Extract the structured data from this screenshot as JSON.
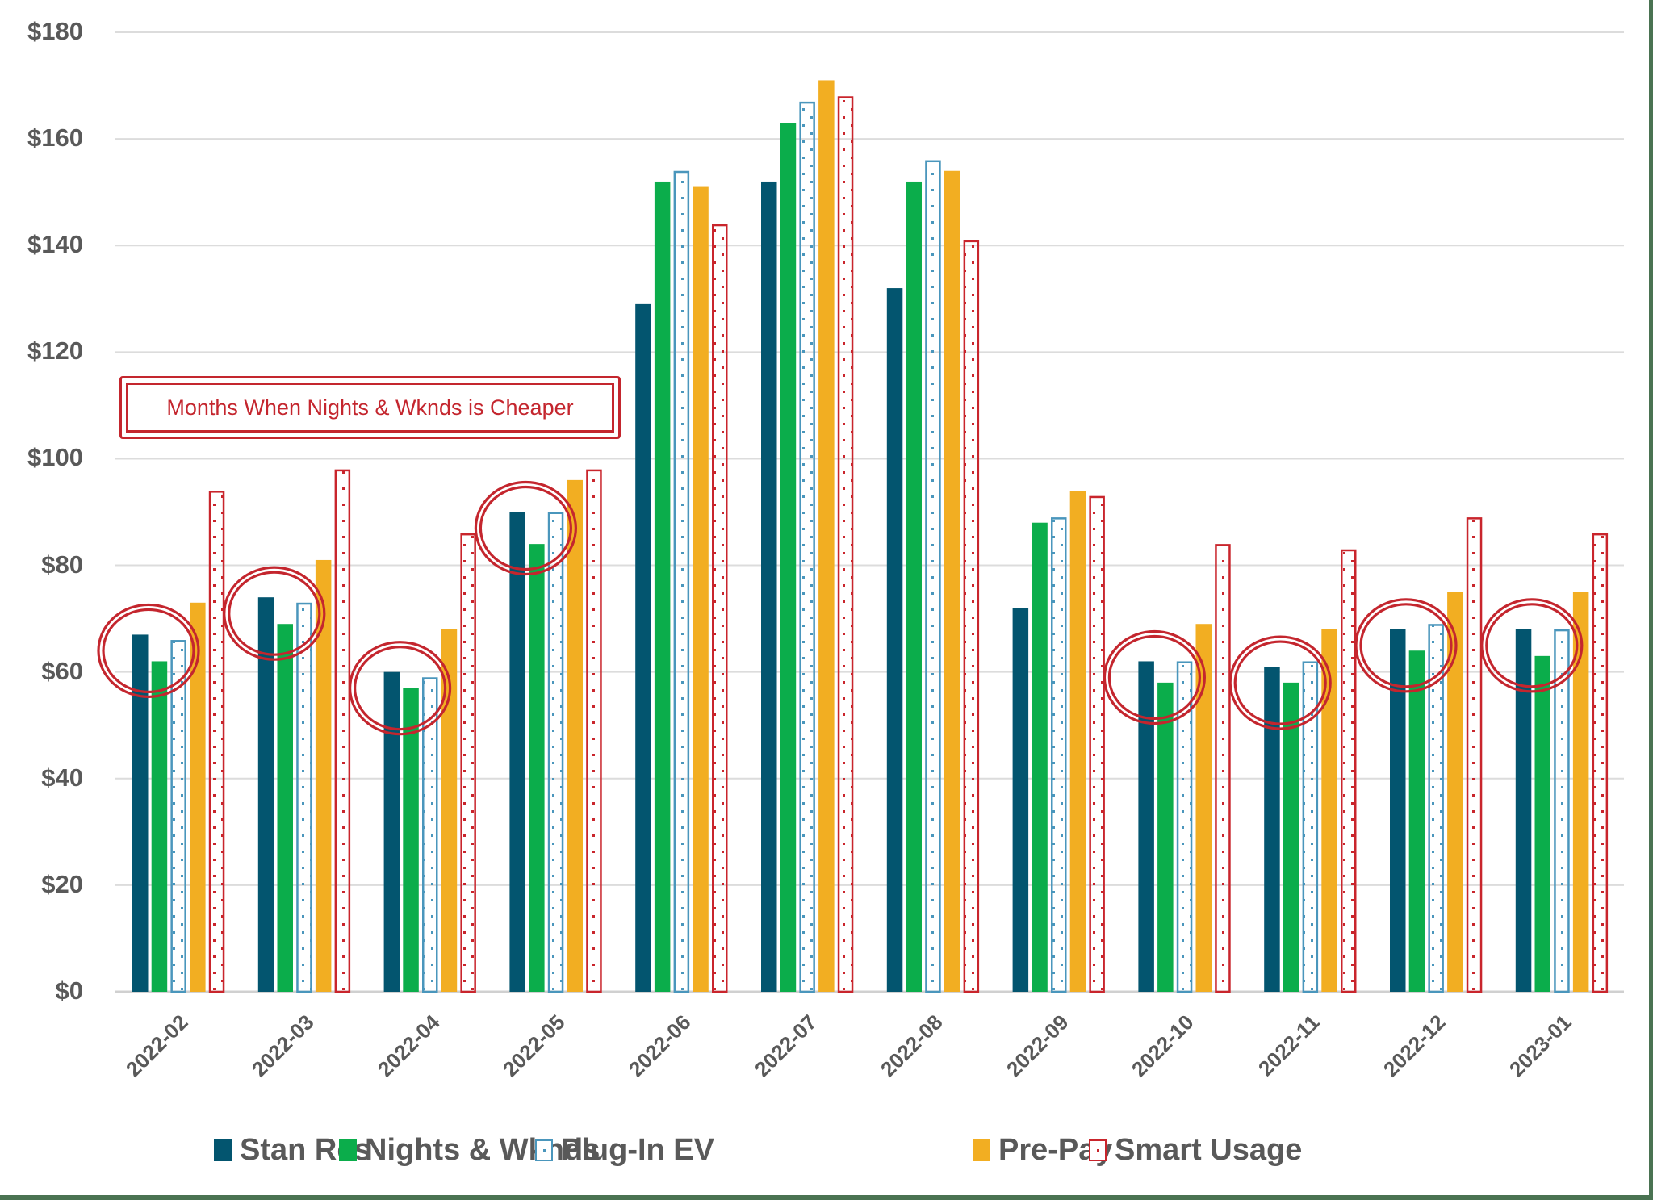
{
  "chart_data": {
    "type": "bar",
    "title": "",
    "xlabel": "",
    "ylabel": "",
    "ylim": [
      0,
      180
    ],
    "yticks": [
      0,
      20,
      40,
      60,
      80,
      100,
      120,
      140,
      160,
      180
    ],
    "ytick_labels": [
      "$0",
      "$20",
      "$40",
      "$60",
      "$80",
      "$100",
      "$120",
      "$140",
      "$160",
      "$180"
    ],
    "grid": true,
    "legend_position": "bottom",
    "categories": [
      "2022-02",
      "2022-03",
      "2022-04",
      "2022-05",
      "2022-06",
      "2022-07",
      "2022-08",
      "2022-09",
      "2022-10",
      "2022-11",
      "2022-12",
      "2023-01"
    ],
    "series": [
      {
        "name": "Stan Res",
        "color": "#03556f",
        "style": "solid",
        "values": [
          67,
          74,
          60,
          90,
          129,
          152,
          132,
          72,
          62,
          61,
          68,
          68
        ]
      },
      {
        "name": "Nights & Wknds",
        "color": "#0bad4b",
        "style": "solid",
        "values": [
          62,
          69,
          57,
          84,
          152,
          163,
          152,
          88,
          58,
          58,
          64,
          63
        ]
      },
      {
        "name": "Plug-In EV",
        "color": "#4a96bc",
        "style": "dotted-outline",
        "values": [
          66,
          73,
          59,
          90,
          154,
          167,
          156,
          89,
          62,
          62,
          69,
          68
        ]
      },
      {
        "name": "Pre-Pay",
        "color": "#f2ae22",
        "style": "solid",
        "values": [
          73,
          81,
          68,
          96,
          151,
          171,
          154,
          94,
          69,
          68,
          75,
          75
        ]
      },
      {
        "name": "Smart Usage",
        "color": "#c9252c",
        "style": "dotted-outline",
        "values": [
          94,
          98,
          86,
          98,
          144,
          168,
          141,
          93,
          84,
          83,
          89,
          86
        ]
      }
    ],
    "annotations": [
      {
        "type": "text-box",
        "text": "Months When Nights & Wknds is Cheaper",
        "color": "#c4262e"
      },
      {
        "type": "circle-highlight",
        "categories": [
          "2022-02",
          "2022-03",
          "2022-04",
          "2022-05",
          "2022-10",
          "2022-11",
          "2022-12",
          "2023-01"
        ],
        "color": "#c4262e"
      }
    ]
  },
  "annotation": {
    "text": "Months When Nights & Wknds is Cheaper"
  },
  "legend": {
    "items": [
      {
        "label": "Stan Res",
        "icon": "solid-square",
        "color": "#03556f"
      },
      {
        "label": "Nights & Wknds",
        "icon": "solid-square",
        "color": "#0bad4b"
      },
      {
        "label": "Plug-In EV",
        "icon": "dotted-outline-square",
        "color": "#4a96bc"
      },
      {
        "label": "Pre-Pay",
        "icon": "solid-square",
        "color": "#f2ae22"
      },
      {
        "label": "Smart Usage",
        "icon": "dotted-outline-square",
        "color": "#c9252c"
      }
    ]
  },
  "colors": {
    "axis_text": "#595959",
    "gridline": "#d9d9d9",
    "frame": "#4a7352",
    "highlight": "#c4262e"
  }
}
